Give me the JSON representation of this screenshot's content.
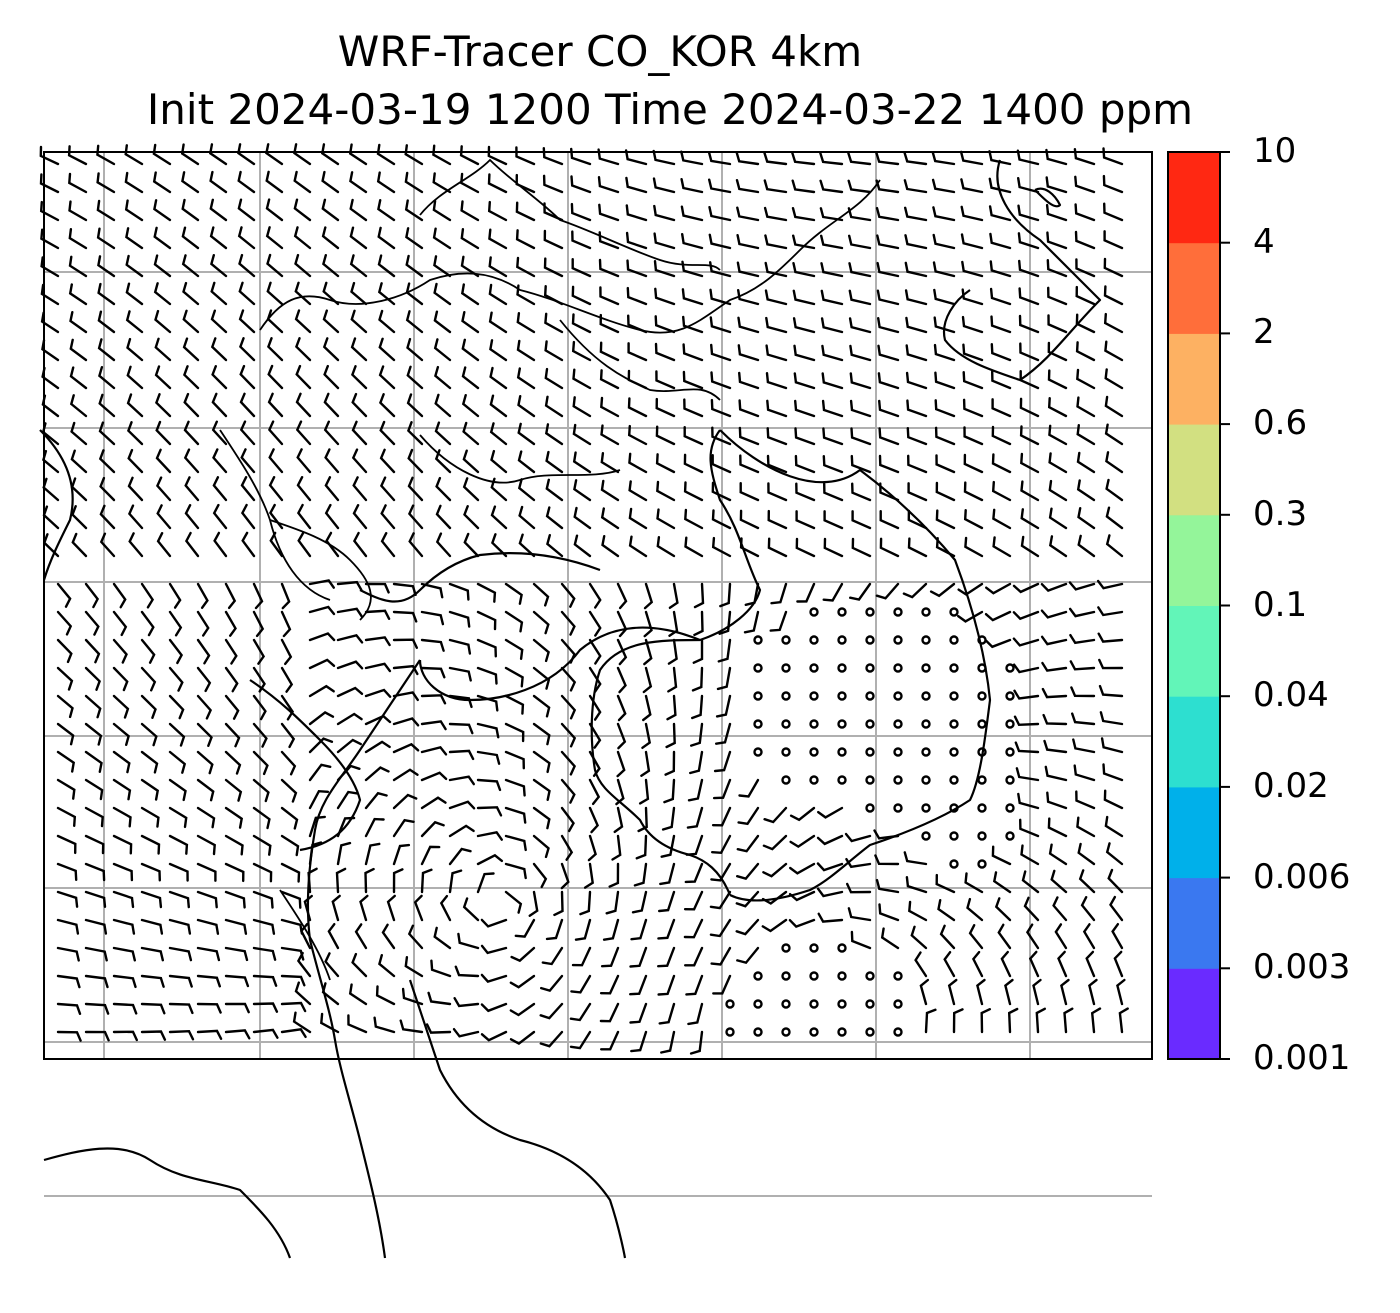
{
  "title": {
    "line1": "WRF-Tracer CO_KOR 4km",
    "line2": "Init 2024-03-19 1200 Time 2024-03-22 1400 ppm"
  },
  "colorbar": {
    "levels": [
      "0.001",
      "0.003",
      "0.006",
      "0.02",
      "0.04",
      "0.1",
      "0.3",
      "0.6",
      "2",
      "4",
      "10"
    ],
    "colors": [
      "#6a2bff",
      "#3a78f0",
      "#00b0ea",
      "#2ddfd0",
      "#62f5b8",
      "#94f59a",
      "#d2e081",
      "#fdb162",
      "#ff6e3a",
      "#ff2812"
    ]
  },
  "map": {
    "grid": true,
    "wind_barbs": true,
    "tracer_field_visible": false
  }
}
